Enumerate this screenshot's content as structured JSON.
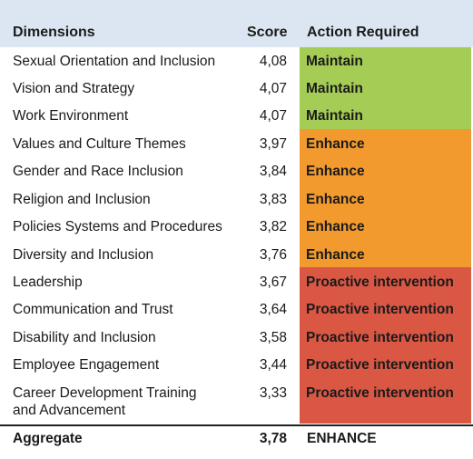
{
  "header": {
    "dimensions": "Dimensions",
    "score": "Score",
    "action": "Action Required"
  },
  "rows": [
    {
      "name": "Sexual Orientation and Inclusion",
      "score": "4,08",
      "action": "Maintain"
    },
    {
      "name": "Vision and Strategy",
      "score": "4,07",
      "action": "Maintain"
    },
    {
      "name": "Work Environment",
      "score": "4,07",
      "action": "Maintain"
    },
    {
      "name": "Values and Culture Themes",
      "score": "3,97",
      "action": "Enhance"
    },
    {
      "name": "Gender and Race Inclusion",
      "score": "3,84",
      "action": "Enhance"
    },
    {
      "name": "Religion and Inclusion",
      "score": "3,83",
      "action": "Enhance"
    },
    {
      "name": "Policies Systems and Procedures",
      "score": "3,82",
      "action": "Enhance"
    },
    {
      "name": "Diversity and Inclusion",
      "score": "3,76",
      "action": "Enhance"
    },
    {
      "name": "Leadership",
      "score": "3,67",
      "action": "Proactive intervention"
    },
    {
      "name": "Communication and Trust",
      "score": "3,64",
      "action": "Proactive intervention"
    },
    {
      "name": "Disability and Inclusion",
      "score": "3,58",
      "action": "Proactive intervention"
    },
    {
      "name": "Employee Engagement",
      "score": "3,44",
      "action": "Proactive intervention"
    },
    {
      "name": "Career Development Training",
      "name2": "and Advancement",
      "score": "3,33",
      "action": "Proactive intervention"
    }
  ],
  "aggregate": {
    "label": "Aggregate",
    "score": "3,78",
    "action": "ENHANCE"
  },
  "colors": {
    "header_bg": "#dce6f2",
    "maintain": "#a5cd55",
    "enhance": "#f39a2e",
    "proactive": "#da5744"
  }
}
